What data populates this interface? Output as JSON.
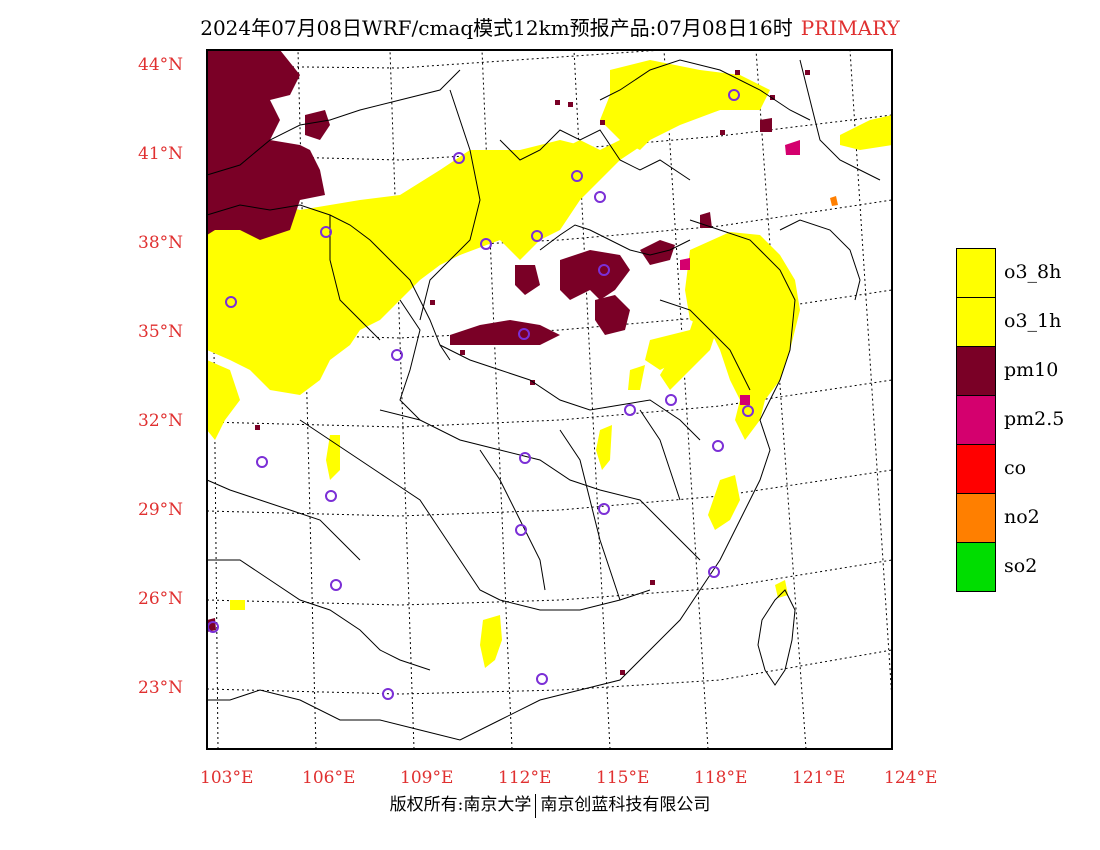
{
  "title": {
    "main": "2024年07月08日WRF/cmaq模式12km预报产品:07月08日16时",
    "tag": "PRIMARY"
  },
  "axes": {
    "lat_labels": [
      "44°N",
      "41°N",
      "38°N",
      "35°N",
      "32°N",
      "29°N",
      "26°N",
      "23°N"
    ],
    "lon_labels": [
      "103°E",
      "106°E",
      "109°E",
      "112°E",
      "115°E",
      "118°E",
      "121°E",
      "124°E"
    ]
  },
  "legend": [
    {
      "label": "o3_8h",
      "color": "#ffff00"
    },
    {
      "label": "o3_1h",
      "color": "#ffff00"
    },
    {
      "label": "pm10",
      "color": "#7a0026"
    },
    {
      "label": "pm2.5",
      "color": "#d4006e"
    },
    {
      "label": "co",
      "color": "#ff0000"
    },
    {
      "label": "no2",
      "color": "#ff7f00"
    },
    {
      "label": "so2",
      "color": "#00dd00"
    }
  ],
  "footer": {
    "left": "版权所有:南京大学",
    "right": "南京创蓝科技有限公司"
  },
  "colors": {
    "tick_text": "#e03030",
    "station_marker": "#7b2fd6",
    "frame": "#000000"
  }
}
